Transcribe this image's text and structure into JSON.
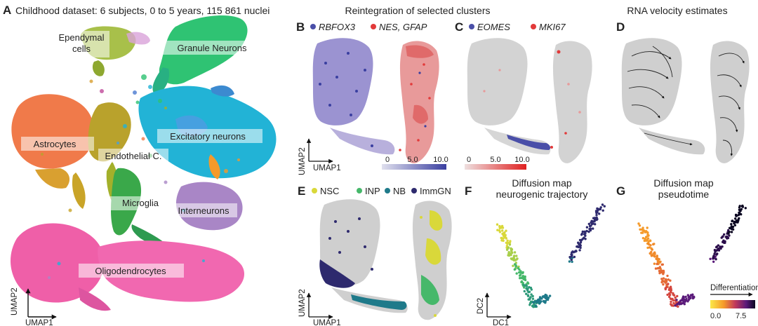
{
  "panels": {
    "A": {
      "letter": "A",
      "title": "Childhood dataset: 6 subjects, 0 to 5 years, 115 861 nuclei",
      "axis_y": "UMAP2",
      "axis_x": "UMAP1",
      "clusters": [
        {
          "label": "Ependymal cells",
          "lines": [
            "Ependymal",
            "cells"
          ],
          "color": "#a8c04a"
        },
        {
          "label": "Granule Neurons",
          "color": "#2fc373"
        },
        {
          "label": "Astrocytes",
          "color": "#f07a4a"
        },
        {
          "label": "Excitatory neurons",
          "color": "#22b3d6"
        },
        {
          "label": "Endothelial C.",
          "color": "#b9a22c"
        },
        {
          "label": "Microglia",
          "color": "#3aa84a"
        },
        {
          "label": "Interneurons",
          "color": "#a986c6"
        },
        {
          "label": "Oligodendrocytes",
          "color": "#ef5fa8"
        }
      ]
    },
    "B": {
      "letter": "B",
      "section_title": "Reintegration of selected clusters",
      "legend": [
        {
          "label": "RBFOX3",
          "color": "#4a4fa8"
        },
        {
          "label": "NES, GFAP",
          "color": "#e23a3a"
        }
      ],
      "axis_y": "UMAP2",
      "axis_x": "UMAP1",
      "scale_ticks": [
        "0",
        "5.0",
        "10.0"
      ],
      "scale_colors": [
        "#e0e0ee",
        "#3a3fa0"
      ]
    },
    "C": {
      "letter": "C",
      "legend": [
        {
          "label": "EOMES",
          "color": "#4a4fa8"
        },
        {
          "label": "MKI67",
          "color": "#e23a3a"
        }
      ],
      "scale_ticks": [
        "0",
        "5.0",
        "10.0"
      ],
      "scale_colors": [
        "#eee0e0",
        "#e02020"
      ]
    },
    "D": {
      "letter": "D",
      "title": "RNA velocity estimates"
    },
    "E": {
      "letter": "E",
      "legend": [
        {
          "label": "NSC",
          "color": "#d9d83a"
        },
        {
          "label": "INP",
          "color": "#46b86a"
        },
        {
          "label": "NB",
          "color": "#1f7a8a"
        },
        {
          "label": "ImmGN",
          "color": "#2e2a6e"
        }
      ],
      "axis_y": "UMAP2",
      "axis_x": "UMAP1"
    },
    "F": {
      "letter": "F",
      "title_lines": [
        "Diffusion map",
        "neurogenic trajectory"
      ],
      "axis_y": "DC2",
      "axis_x": "DC1"
    },
    "G": {
      "letter": "G",
      "title_lines": [
        "Diffusion map",
        "pseudotime"
      ],
      "colorbar_title": "Differentiation",
      "colorbar_ticks": [
        "0.0",
        "7.5"
      ]
    }
  }
}
